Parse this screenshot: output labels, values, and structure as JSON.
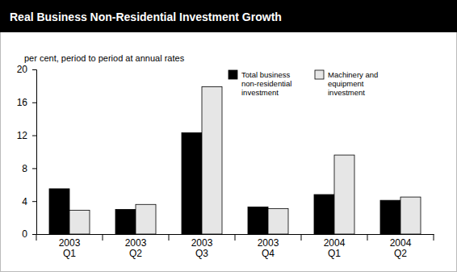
{
  "chart_data": {
    "type": "bar",
    "title": "Real Business Non-Residential Investment Growth",
    "y_label": "per cent, period to period at annual rates",
    "categories": [
      "2003 Q1",
      "2003 Q2",
      "2003 Q3",
      "2003 Q4",
      "2004 Q1",
      "2004 Q2"
    ],
    "series": [
      {
        "name": "Total business non-residential investment",
        "color": "#000000",
        "values": [
          5.5,
          3.0,
          12.3,
          3.3,
          4.8,
          4.1
        ]
      },
      {
        "name": "Machinery and equipment investment",
        "color": "#e6e6e6",
        "values": [
          2.9,
          3.6,
          17.9,
          3.1,
          9.6,
          4.5
        ]
      }
    ],
    "ylim": [
      0,
      20
    ],
    "yticks": [
      0,
      4,
      8,
      12,
      16,
      20
    ],
    "grid": false,
    "legend": "top"
  }
}
